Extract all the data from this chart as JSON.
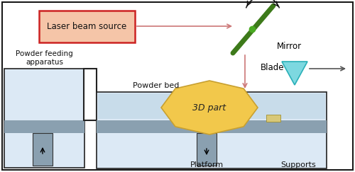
{
  "bg_color": "#ffffff",
  "chamber_fill": "#dce9f5",
  "gray_layer": "#8aa0b0",
  "piston_color": "#8aa0b0",
  "part_color": "#f2c84b",
  "part_edge": "#c8a030",
  "part_label": "3D part",
  "mirror_color": "#3d7a1a",
  "blade_fill": "#7dd8e0",
  "blade_edge": "#2ab0b8",
  "laser_fill": "#f5c5a8",
  "laser_edge": "#cc2222",
  "laser_text": "Laser beam source",
  "arrow_color": "#cc7777",
  "support_fill": "#d8c878",
  "support_edge": "#a09030",
  "labels": {
    "powder_feeding": "Powder feeding\napparatus",
    "powder_bed": "Powder bed",
    "platform": "Platform",
    "supports": "Supports",
    "mirror": "Mirror",
    "blade": "Blade"
  },
  "outer_border": "#1a1a1a"
}
